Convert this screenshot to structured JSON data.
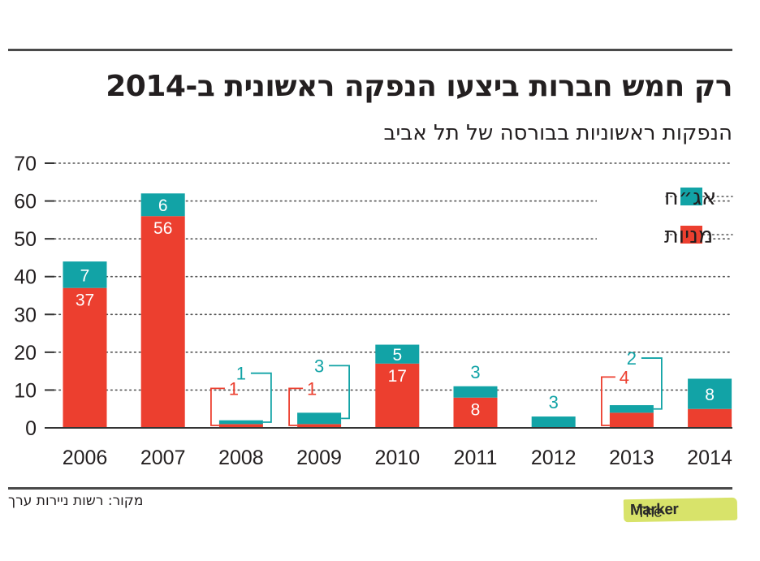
{
  "header": {
    "title": "רק חמש חברות ביצעו הנפקה ראשונית ב-2014",
    "subtitle": "הנפקות ראשוניות בבורסה של תל אביב"
  },
  "footer": {
    "source": "מקור: רשות ניירות ערך",
    "logo_light": "The",
    "logo_bold": "Marker"
  },
  "colors": {
    "bonds": "#12a3a6",
    "stocks": "#ec3f2f",
    "text": "#231f20"
  },
  "chart_data": {
    "type": "bar",
    "stacked": true,
    "title": "רק חמש חברות ביצעו הנפקה ראשונית ב-2014",
    "subtitle": "הנפקות ראשוניות בבורסה של תל אביב",
    "xlabel": "",
    "ylabel": "",
    "categories": [
      "2006",
      "2007",
      "2008",
      "2009",
      "2010",
      "2011",
      "2012",
      "2013",
      "2014"
    ],
    "yticks": [
      0,
      10,
      20,
      30,
      40,
      50,
      60,
      70
    ],
    "ylim": [
      0,
      70
    ],
    "grid": "dotted-horizontal",
    "legend_position": "top-right",
    "series": [
      {
        "name": "מניות",
        "key": "stocks",
        "color": "#ec3f2f",
        "values": [
          37,
          56,
          1,
          1,
          17,
          8,
          0,
          4,
          5
        ]
      },
      {
        "name": "אג\"ח",
        "key": "bonds",
        "color": "#12a3a6",
        "values": [
          7,
          6,
          1,
          3,
          5,
          3,
          3,
          2,
          8
        ]
      }
    ],
    "legend": [
      {
        "label": "אג״ח",
        "series": "bonds"
      },
      {
        "label": "מניות",
        "series": "stocks"
      }
    ],
    "source": "מקור: רשות ניירות ערך"
  }
}
